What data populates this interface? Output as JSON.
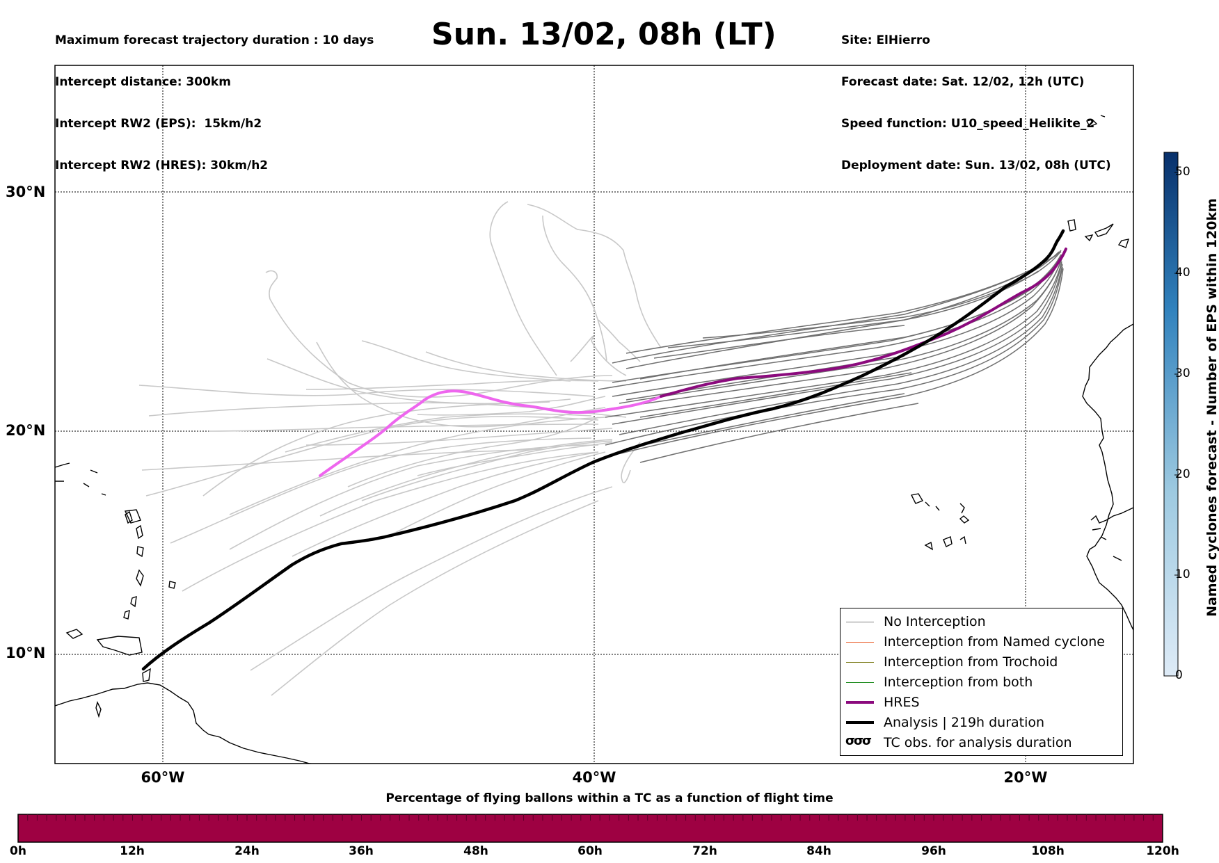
{
  "header": {
    "left_lines": [
      "Maximum forecast trajectory duration : 10 days",
      "Intercept distance: 300km",
      "Intercept RW2 (EPS):  15km/h2",
      "Intercept RW2 (HRES): 30km/h2"
    ],
    "title": "Sun. 13/02, 08h (LT)",
    "right_lines": [
      "Site: ElHierro",
      "Forecast date: Sat. 12/02, 12h (UTC)",
      "Speed function: U10_speed_Helikite_2",
      "Deployment date: Sun. 13/02, 08h (UTC)"
    ]
  },
  "map": {
    "lat_labels": [
      "30°N",
      "20°N",
      "10°N"
    ],
    "lon_labels": [
      "60°W",
      "40°W",
      "20°W"
    ],
    "colors": {
      "no_interception": "#707070",
      "light_tracks": "#c8c8c8",
      "hres_early": "#ee66ee",
      "hres_late": "#8b0a7d",
      "analysis": "#000000"
    }
  },
  "legend": {
    "items": [
      {
        "label": "No Interception",
        "color": "#808080"
      },
      {
        "label": "Interception from Named cyclone",
        "color": "#e8531c"
      },
      {
        "label": "Interception from Trochoid",
        "color": "#7d7d1a"
      },
      {
        "label": "Interception from both",
        "color": "#1a8a1a"
      },
      {
        "label": "HRES",
        "color": "#8b0a7d"
      },
      {
        "label": "Analysis | 219h duration",
        "color": "#000000"
      },
      {
        "label": "TC obs. for analysis duration",
        "icon": "cyclone-symbol-icon",
        "symbol": "σσσ"
      }
    ]
  },
  "right_colorbar": {
    "title": "Named cyclones forecast - Number of EPS within 120km",
    "ticks": [
      "50",
      "40",
      "30",
      "20",
      "10",
      "0"
    ],
    "color_light": "#deebf7",
    "color_dark": "#08306b"
  },
  "bottom_colorbar": {
    "title": "Percentage of flying ballons within a TC as a function of flight time",
    "ticks": [
      "0h",
      "12h",
      "24h",
      "36h",
      "48h",
      "60h",
      "72h",
      "84h",
      "96h",
      "108h",
      "120h"
    ],
    "fill_color": "#9e0142"
  }
}
